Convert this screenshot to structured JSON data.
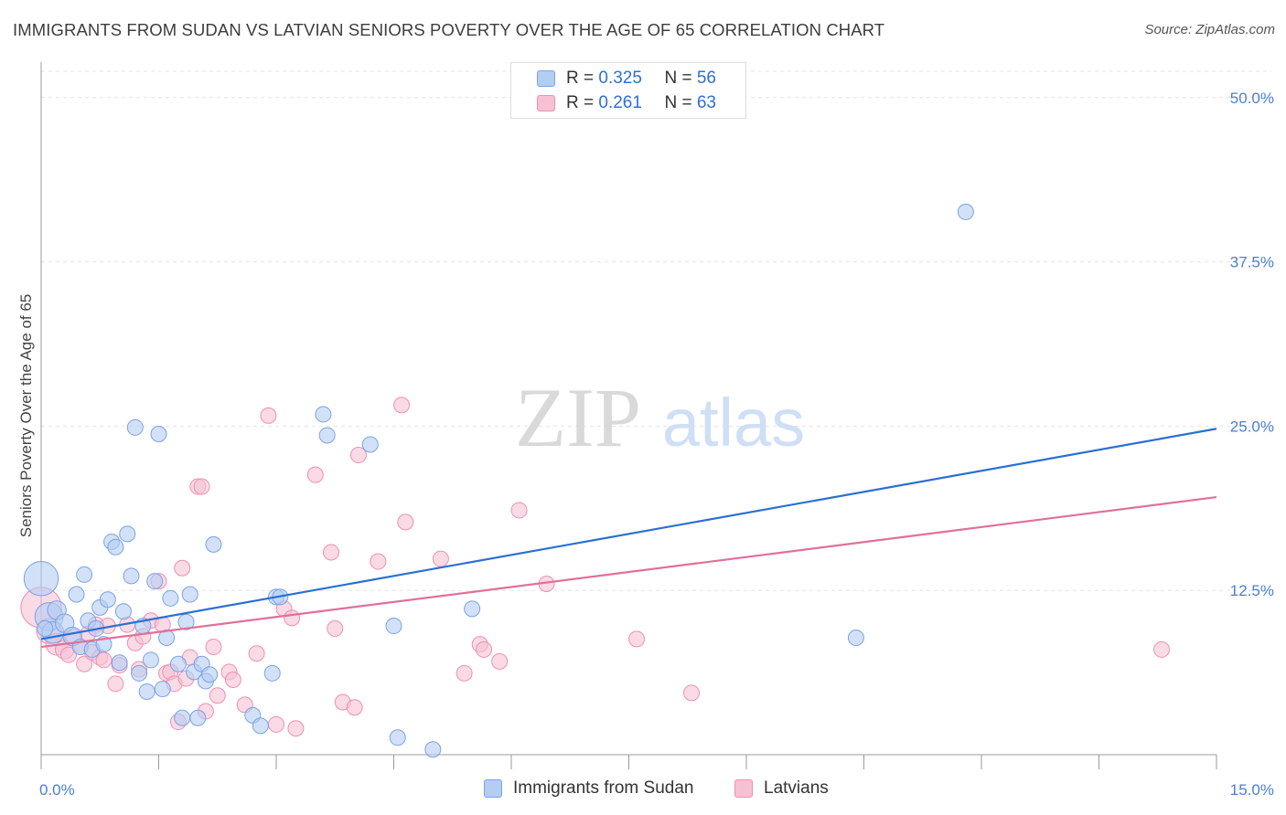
{
  "title": "IMMIGRANTS FROM SUDAN VS LATVIAN SENIORS POVERTY OVER THE AGE OF 65 CORRELATION CHART",
  "source": "Source: ZipAtlas.com",
  "watermark": {
    "zip": "ZIP",
    "atlas": "atlas"
  },
  "colors": {
    "blue_fill": "#b4cdf3",
    "blue_stroke": "#7aa3e6",
    "blue_line": "#2a6fd1",
    "pink_fill": "#f6c1d3",
    "pink_stroke": "#ee90b1",
    "pink_line": "#e0709a",
    "grid": "#e4e4e4",
    "tick_text": "#4a7fd4"
  },
  "legend_top": [
    {
      "r_label": "R = ",
      "r_value": "0.325",
      "n_label": "N = ",
      "n_value": "56"
    },
    {
      "r_label": "R = ",
      "r_value": "0.261",
      "n_label": "N = ",
      "n_value": "63"
    }
  ],
  "chart_data": {
    "type": "scatter",
    "title": "IMMIGRANTS FROM SUDAN VS LATVIAN SENIORS POVERTY OVER THE AGE OF 65 CORRELATION CHART",
    "xlabel": "",
    "ylabel": "Seniors Poverty Over the Age of 65",
    "xlim": [
      0,
      15
    ],
    "ylim": [
      0,
      52
    ],
    "x_tick_labels": [
      "0.0%",
      "15.0%"
    ],
    "y_ticks": [
      12.5,
      25,
      37.5,
      50
    ],
    "y_tick_labels": [
      "12.5%",
      "25.0%",
      "37.5%",
      "50.0%"
    ],
    "grid": true,
    "legend_position": "bottom",
    "series": [
      {
        "name": "Immigrants from Sudan",
        "color": "#b4cdf3",
        "trend": {
          "x": [
            0,
            15
          ],
          "y": [
            8.8,
            24.8
          ]
        },
        "points": [
          [
            0.0,
            13.4,
            2.2
          ],
          [
            0.1,
            10.5,
            1.8
          ],
          [
            0.15,
            9.3,
            1.4
          ],
          [
            0.2,
            11.0,
            1.2
          ],
          [
            0.3,
            10.0,
            1.2
          ],
          [
            0.4,
            9.0,
            1.2
          ],
          [
            0.45,
            12.2,
            1.0
          ],
          [
            0.5,
            8.2,
            1.0
          ],
          [
            0.55,
            13.7,
            1.0
          ],
          [
            0.6,
            10.2,
            1.0
          ],
          [
            0.65,
            8.0,
            1.0
          ],
          [
            0.7,
            9.6,
            1.0
          ],
          [
            0.75,
            11.2,
            1.0
          ],
          [
            0.8,
            8.4,
            1.0
          ],
          [
            0.85,
            11.8,
            1.0
          ],
          [
            0.9,
            16.2,
            1.0
          ],
          [
            0.95,
            15.8,
            1.0
          ],
          [
            1.0,
            7.0,
            1.0
          ],
          [
            1.05,
            10.9,
            1.0
          ],
          [
            1.1,
            16.8,
            1.0
          ],
          [
            1.15,
            13.6,
            1.0
          ],
          [
            1.2,
            24.9,
            1.0
          ],
          [
            1.25,
            6.2,
            1.0
          ],
          [
            1.3,
            9.8,
            1.0
          ],
          [
            1.35,
            4.8,
            1.0
          ],
          [
            1.4,
            7.2,
            1.0
          ],
          [
            1.45,
            13.2,
            1.0
          ],
          [
            1.5,
            24.4,
            1.0
          ],
          [
            1.55,
            5.0,
            1.0
          ],
          [
            1.6,
            8.9,
            1.0
          ],
          [
            1.65,
            11.9,
            1.0
          ],
          [
            1.75,
            6.9,
            1.0
          ],
          [
            1.8,
            2.8,
            1.0
          ],
          [
            1.85,
            10.1,
            1.0
          ],
          [
            1.9,
            12.2,
            1.0
          ],
          [
            1.95,
            6.3,
            1.0
          ],
          [
            2.0,
            2.8,
            1.0
          ],
          [
            2.05,
            6.9,
            1.0
          ],
          [
            2.1,
            5.6,
            1.0
          ],
          [
            2.15,
            6.1,
            1.0
          ],
          [
            2.2,
            16.0,
            1.0
          ],
          [
            2.7,
            3.0,
            1.0
          ],
          [
            2.8,
            2.2,
            1.0
          ],
          [
            2.95,
            6.2,
            1.0
          ],
          [
            3.0,
            12.0,
            1.0
          ],
          [
            3.05,
            12.0,
            1.0
          ],
          [
            3.6,
            25.9,
            1.0
          ],
          [
            3.65,
            24.3,
            1.0
          ],
          [
            4.2,
            23.6,
            1.0
          ],
          [
            4.5,
            9.8,
            1.0
          ],
          [
            4.55,
            1.3,
            1.0
          ],
          [
            5.0,
            0.4,
            1.0
          ],
          [
            5.5,
            11.1,
            1.0
          ],
          [
            10.4,
            8.9,
            1.0
          ],
          [
            11.8,
            41.3,
            1.0
          ],
          [
            0.05,
            9.6,
            1.0
          ]
        ]
      },
      {
        "name": "Latvians",
        "color": "#f6c1d3",
        "trend": {
          "x": [
            0,
            15
          ],
          "y": [
            8.2,
            19.6
          ]
        },
        "points": [
          [
            0.0,
            11.2,
            2.6
          ],
          [
            0.1,
            9.4,
            1.6
          ],
          [
            0.2,
            8.4,
            1.4
          ],
          [
            0.3,
            8.0,
            1.2
          ],
          [
            0.35,
            7.6,
            1.0
          ],
          [
            0.4,
            9.0,
            1.0
          ],
          [
            0.5,
            8.2,
            1.0
          ],
          [
            0.55,
            6.9,
            1.0
          ],
          [
            0.6,
            9.2,
            1.0
          ],
          [
            0.65,
            7.8,
            1.0
          ],
          [
            0.7,
            9.9,
            1.0
          ],
          [
            0.75,
            7.4,
            1.0
          ],
          [
            0.8,
            7.2,
            1.0
          ],
          [
            0.85,
            9.8,
            1.0
          ],
          [
            0.95,
            5.4,
            1.0
          ],
          [
            1.0,
            6.8,
            1.0
          ],
          [
            1.1,
            9.9,
            1.0
          ],
          [
            1.2,
            8.5,
            1.0
          ],
          [
            1.25,
            6.5,
            1.0
          ],
          [
            1.3,
            9.0,
            1.0
          ],
          [
            1.4,
            10.2,
            1.0
          ],
          [
            1.5,
            13.2,
            1.0
          ],
          [
            1.55,
            9.9,
            1.0
          ],
          [
            1.6,
            6.2,
            1.0
          ],
          [
            1.65,
            6.3,
            1.0
          ],
          [
            1.7,
            5.4,
            1.0
          ],
          [
            1.75,
            2.5,
            1.0
          ],
          [
            1.8,
            14.2,
            1.0
          ],
          [
            1.85,
            5.8,
            1.0
          ],
          [
            1.9,
            7.4,
            1.0
          ],
          [
            2.0,
            20.4,
            1.0
          ],
          [
            2.05,
            20.4,
            1.0
          ],
          [
            2.1,
            3.3,
            1.0
          ],
          [
            2.2,
            8.2,
            1.0
          ],
          [
            2.25,
            4.5,
            1.0
          ],
          [
            2.4,
            6.3,
            1.0
          ],
          [
            2.45,
            5.7,
            1.0
          ],
          [
            2.6,
            3.8,
            1.0
          ],
          [
            2.75,
            7.7,
            1.0
          ],
          [
            2.9,
            25.8,
            1.0
          ],
          [
            3.0,
            2.3,
            1.0
          ],
          [
            3.1,
            11.1,
            1.0
          ],
          [
            3.2,
            10.4,
            1.0
          ],
          [
            3.25,
            2.0,
            1.0
          ],
          [
            3.5,
            21.3,
            1.0
          ],
          [
            3.7,
            15.4,
            1.0
          ],
          [
            3.75,
            9.6,
            1.0
          ],
          [
            3.85,
            4.0,
            1.0
          ],
          [
            4.0,
            3.6,
            1.0
          ],
          [
            4.05,
            22.8,
            1.0
          ],
          [
            4.3,
            14.7,
            1.0
          ],
          [
            4.6,
            26.6,
            1.0
          ],
          [
            4.65,
            17.7,
            1.0
          ],
          [
            5.1,
            14.9,
            1.0
          ],
          [
            5.4,
            6.2,
            1.0
          ],
          [
            5.6,
            8.4,
            1.0
          ],
          [
            5.65,
            8.0,
            1.0
          ],
          [
            5.85,
            7.1,
            1.0
          ],
          [
            6.1,
            18.6,
            1.0
          ],
          [
            6.45,
            13.0,
            1.0
          ],
          [
            7.6,
            8.8,
            1.0
          ],
          [
            8.3,
            4.7,
            1.0
          ],
          [
            14.3,
            8.0,
            1.0
          ]
        ]
      }
    ]
  },
  "legend_bottom": [
    {
      "label": "Immigrants from Sudan"
    },
    {
      "label": "Latvians"
    }
  ]
}
